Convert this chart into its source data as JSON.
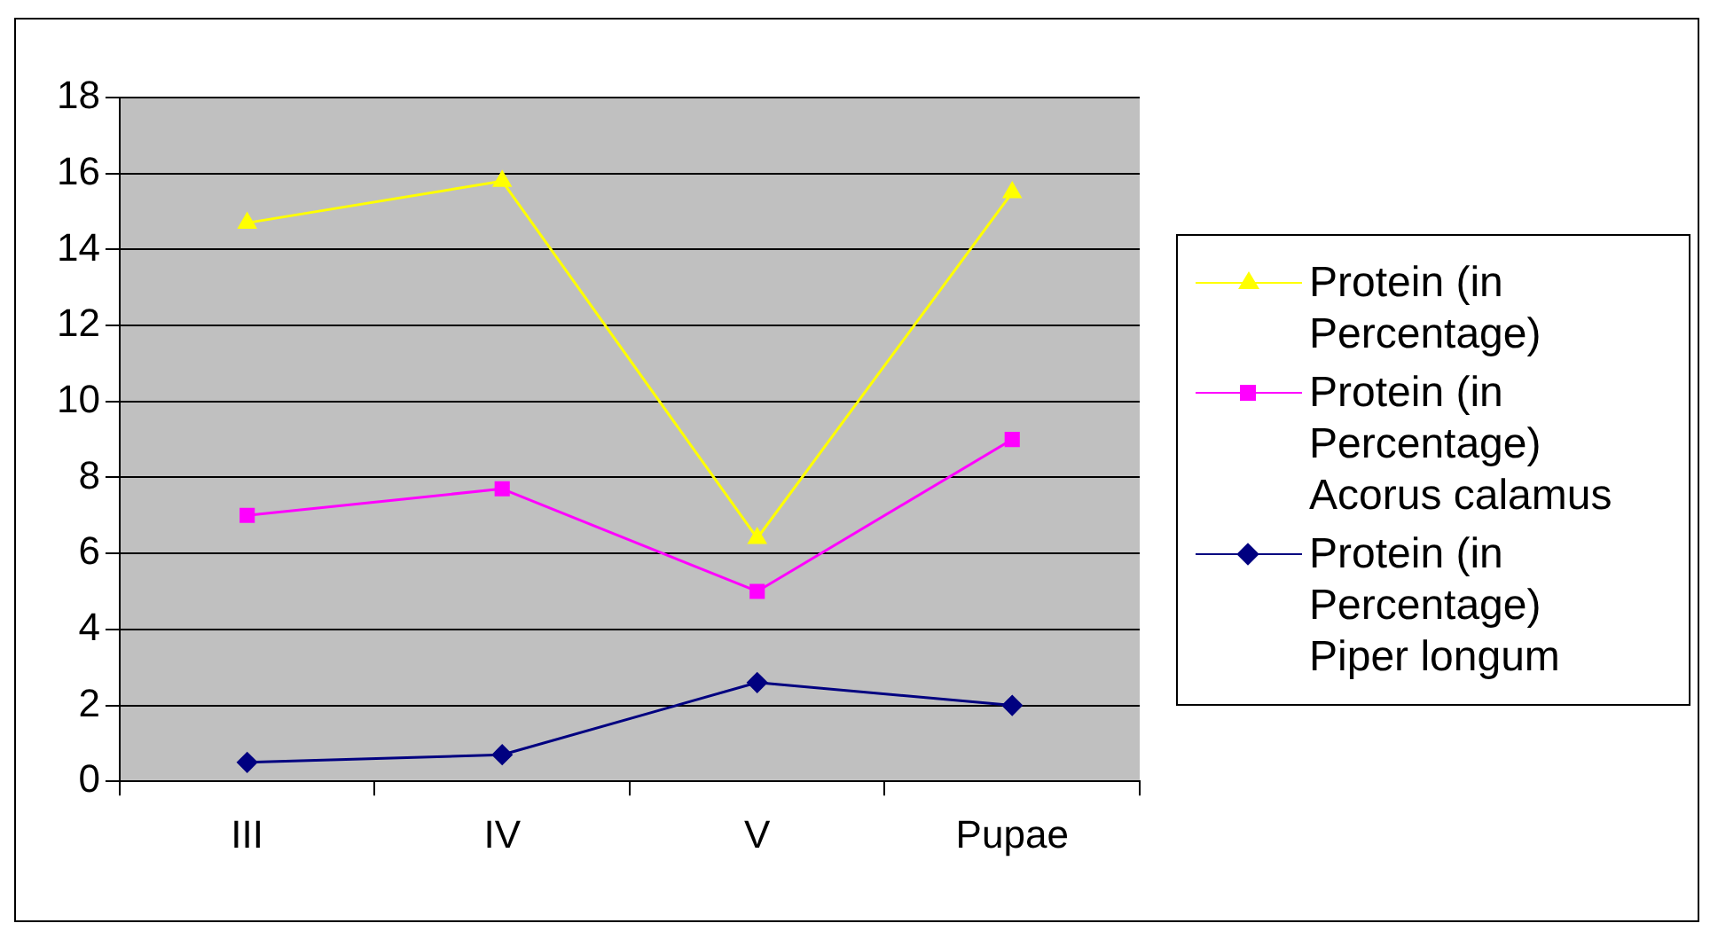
{
  "chart_data": {
    "type": "line",
    "categories": [
      "III",
      "IV",
      "V",
      "Pupae"
    ],
    "series": [
      {
        "name": "Protein (in Percentage)",
        "color": "#ffff00",
        "marker": "triangle",
        "values": [
          14.7,
          15.8,
          6.4,
          15.5
        ]
      },
      {
        "name": "Protein (in Percentage) Acorus calamus",
        "color": "#ff00ff",
        "marker": "square",
        "values": [
          7.0,
          7.7,
          5.0,
          9.0
        ]
      },
      {
        "name": "Protein (in Percentage) Piper longum",
        "color": "#000080",
        "marker": "diamond",
        "values": [
          0.5,
          0.7,
          2.6,
          2.0
        ]
      }
    ],
    "ylim": [
      0,
      18
    ],
    "yticks": [
      0,
      2,
      4,
      6,
      8,
      10,
      12,
      14,
      16,
      18
    ],
    "grid": "y",
    "legend": "right",
    "line_style": "solid"
  }
}
